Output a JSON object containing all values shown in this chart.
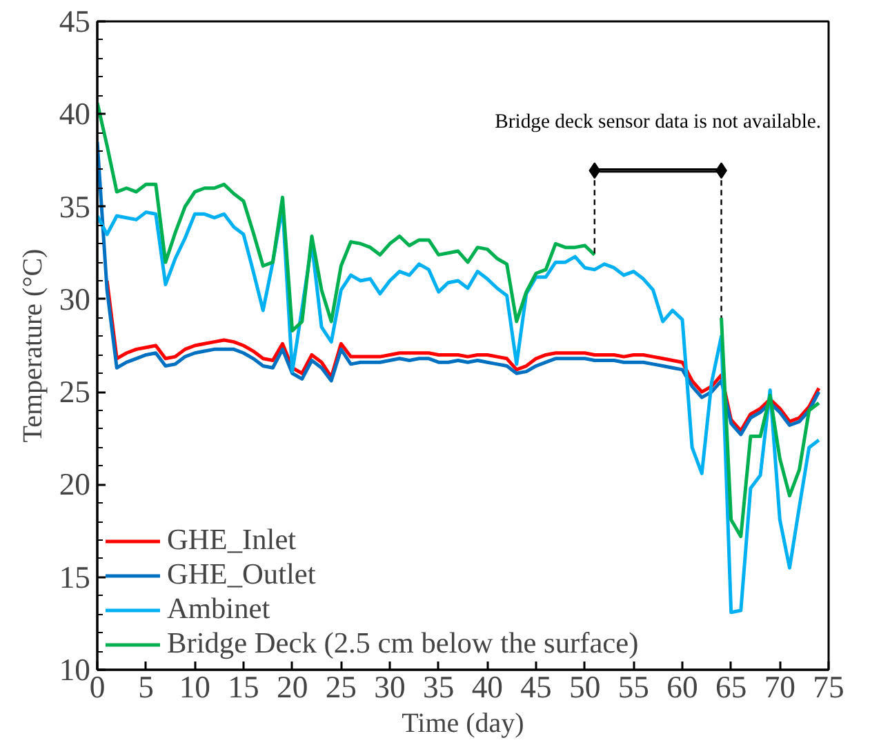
{
  "chart_data": {
    "type": "line",
    "xlabel": "Time (day)",
    "ylabel": "Temperature (°C)",
    "x": [
      0,
      1,
      2,
      3,
      4,
      5,
      6,
      7,
      8,
      9,
      10,
      11,
      12,
      13,
      14,
      15,
      16,
      17,
      18,
      19,
      20,
      21,
      22,
      23,
      24,
      25,
      26,
      27,
      28,
      29,
      30,
      31,
      32,
      33,
      34,
      35,
      36,
      37,
      38,
      39,
      40,
      41,
      42,
      43,
      44,
      45,
      46,
      47,
      48,
      49,
      50,
      51,
      52,
      53,
      54,
      55,
      56,
      57,
      58,
      59,
      60,
      61,
      62,
      63,
      64,
      65,
      66,
      67,
      68,
      69,
      70,
      71,
      72,
      73,
      74
    ],
    "xlim": [
      0,
      75
    ],
    "xticks": [
      0,
      5,
      10,
      15,
      20,
      25,
      30,
      35,
      40,
      45,
      50,
      55,
      60,
      65,
      70,
      75
    ],
    "ylim": [
      10,
      45
    ],
    "yticks": [
      10,
      15,
      20,
      25,
      30,
      35,
      40,
      45
    ],
    "grid": false,
    "legend": "bottom left",
    "marker": "none",
    "line_style": "solid",
    "series": [
      {
        "name": "GHE_Inlet",
        "color": "#ff0000",
        "values": [
          null,
          31.0,
          26.8,
          27.1,
          27.3,
          27.4,
          27.5,
          26.8,
          26.9,
          27.3,
          27.5,
          27.6,
          27.7,
          27.8,
          27.7,
          27.5,
          27.2,
          26.8,
          26.7,
          27.6,
          26.3,
          26.0,
          27.0,
          26.6,
          25.8,
          27.6,
          26.9,
          26.9,
          26.9,
          26.9,
          27.0,
          27.1,
          27.1,
          27.1,
          27.1,
          27.0,
          27.0,
          27.0,
          26.9,
          27.0,
          27.0,
          26.9,
          26.8,
          26.2,
          26.4,
          26.8,
          27.0,
          27.1,
          27.1,
          27.1,
          27.1,
          27.0,
          27.0,
          27.0,
          26.9,
          27.0,
          27.0,
          26.9,
          26.8,
          26.7,
          26.6,
          25.6,
          25.0,
          25.3,
          25.9,
          23.5,
          22.9,
          23.8,
          24.1,
          24.6,
          24.1,
          23.4,
          23.6,
          24.2,
          25.2
        ]
      },
      {
        "name": "GHE_Outlet",
        "color": "#0070c0",
        "values": [
          38.5,
          30.5,
          26.3,
          26.6,
          26.8,
          27.0,
          27.1,
          26.4,
          26.5,
          26.9,
          27.1,
          27.2,
          27.3,
          27.3,
          27.3,
          27.1,
          26.8,
          26.4,
          26.3,
          27.3,
          26.0,
          25.7,
          26.7,
          26.3,
          25.6,
          27.3,
          26.5,
          26.6,
          26.6,
          26.6,
          26.7,
          26.8,
          26.7,
          26.8,
          26.8,
          26.6,
          26.6,
          26.7,
          26.6,
          26.7,
          26.6,
          26.5,
          26.4,
          26.0,
          26.1,
          26.4,
          26.6,
          26.8,
          26.8,
          26.8,
          26.8,
          26.7,
          26.7,
          26.7,
          26.6,
          26.6,
          26.6,
          26.5,
          26.4,
          26.3,
          26.2,
          25.3,
          24.7,
          25.0,
          25.6,
          23.3,
          22.7,
          23.6,
          23.9,
          24.4,
          23.9,
          23.2,
          23.4,
          24.0,
          25.0
        ]
      },
      {
        "name": "Ambinet",
        "color": "#00b0f0",
        "values": [
          34.5,
          33.5,
          34.5,
          34.4,
          34.3,
          34.7,
          34.6,
          30.8,
          32.2,
          33.3,
          34.6,
          34.6,
          34.4,
          34.6,
          33.9,
          33.5,
          31.5,
          29.4,
          32.0,
          35.0,
          26.1,
          29.5,
          33.0,
          28.5,
          27.7,
          30.5,
          31.3,
          31.0,
          31.1,
          30.3,
          31.0,
          31.5,
          31.3,
          31.9,
          31.6,
          30.4,
          30.9,
          31.0,
          30.6,
          31.5,
          31.1,
          30.6,
          30.2,
          26.5,
          30.3,
          31.2,
          31.2,
          32.0,
          32.0,
          32.3,
          31.7,
          31.6,
          31.9,
          31.7,
          31.3,
          31.5,
          31.1,
          30.5,
          28.8,
          29.4,
          28.9,
          22.0,
          20.6,
          25.5,
          28.0,
          13.1,
          13.2,
          19.8,
          20.5,
          25.1,
          18.1,
          15.5,
          18.8,
          22.0,
          22.4
        ]
      },
      {
        "name": "Bridge Deck (2.5 cm below the surface)",
        "color": "#00b050",
        "values": [
          40.6,
          38.3,
          35.8,
          36.0,
          35.8,
          36.2,
          36.2,
          32.0,
          33.6,
          35.0,
          35.8,
          36.0,
          36.0,
          36.2,
          35.7,
          35.3,
          33.6,
          31.8,
          32.0,
          35.5,
          28.3,
          28.8,
          33.4,
          30.5,
          28.8,
          31.8,
          33.1,
          33.0,
          32.8,
          32.4,
          33.0,
          33.4,
          32.9,
          33.2,
          33.2,
          32.4,
          32.5,
          32.6,
          32.0,
          32.8,
          32.7,
          32.2,
          31.9,
          28.8,
          30.4,
          31.4,
          31.6,
          33.0,
          32.8,
          32.8,
          32.9,
          32.4,
          null,
          null,
          null,
          null,
          null,
          null,
          null,
          null,
          null,
          null,
          null,
          null,
          29.0,
          18.1,
          17.2,
          22.6,
          22.6,
          24.8,
          21.4,
          19.4,
          20.8,
          24.0,
          24.4
        ]
      }
    ],
    "annotations": [
      "Bridge deck sensor data is not available."
    ]
  }
}
